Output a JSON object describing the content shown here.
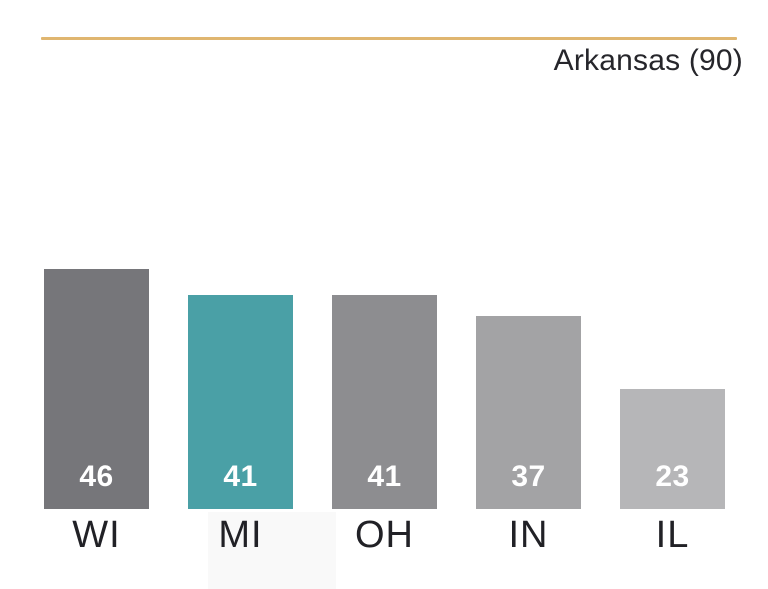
{
  "header": {
    "title": "Arkansas (90)"
  },
  "chart_data": {
    "type": "bar",
    "title": "Arkansas (90)",
    "categories": [
      "WI",
      "MI",
      "OH",
      "IN",
      "IL"
    ],
    "values": [
      46,
      41,
      41,
      37,
      23
    ],
    "bar_colors": [
      "#76767a",
      "#4aa0a6",
      "#8d8d90",
      "#a3a3a5",
      "#b6b6b8"
    ],
    "highlighted_category": "MI",
    "highlight_color": "#4aa0a6",
    "accent_line_color": "#e0b670",
    "value_label_color": "#ffffff",
    "axis_label_color": "#212126",
    "title_color": "#26262b",
    "ylim": [
      0,
      46
    ],
    "grid": false,
    "legend": false,
    "value_labels_position": "inside-bottom",
    "xlabel": "",
    "ylabel": ""
  }
}
